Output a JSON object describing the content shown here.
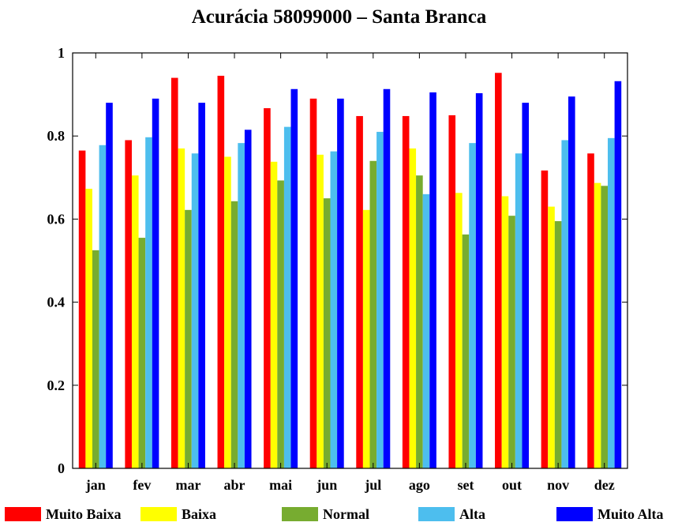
{
  "chart_data": {
    "type": "bar",
    "title": "Acurácia 58099000 – Santa Branca",
    "xlabel": "",
    "ylabel": "",
    "categories": [
      "jan",
      "fev",
      "mar",
      "abr",
      "mai",
      "jun",
      "jul",
      "ago",
      "set",
      "out",
      "nov",
      "dez"
    ],
    "ylim": [
      0,
      1
    ],
    "yticks": [
      "0",
      "0.2",
      "0.4",
      "0.6",
      "0.8",
      "1"
    ],
    "grid": false,
    "legend_position": "bottom",
    "series": [
      {
        "name": "Muito Baixa",
        "color": "#ff0000",
        "values": [
          0.765,
          0.79,
          0.94,
          0.945,
          0.867,
          0.89,
          0.848,
          0.848,
          0.85,
          0.952,
          0.717,
          0.758
        ]
      },
      {
        "name": "Baixa",
        "color": "#ffff00",
        "values": [
          0.673,
          0.705,
          0.77,
          0.75,
          0.738,
          0.755,
          0.622,
          0.77,
          0.663,
          0.655,
          0.63,
          0.687
        ]
      },
      {
        "name": "Normal",
        "color": "#77ac30",
        "values": [
          0.525,
          0.555,
          0.622,
          0.643,
          0.693,
          0.65,
          0.74,
          0.705,
          0.563,
          0.608,
          0.595,
          0.68
        ]
      },
      {
        "name": "Alta",
        "color": "#4dbeee",
        "values": [
          0.778,
          0.797,
          0.758,
          0.783,
          0.822,
          0.763,
          0.81,
          0.66,
          0.783,
          0.758,
          0.79,
          0.795
        ]
      },
      {
        "name": "Muito Alta",
        "color": "#0000ff",
        "values": [
          0.88,
          0.89,
          0.88,
          0.815,
          0.913,
          0.89,
          0.913,
          0.905,
          0.903,
          0.88,
          0.895,
          0.932
        ]
      }
    ]
  }
}
